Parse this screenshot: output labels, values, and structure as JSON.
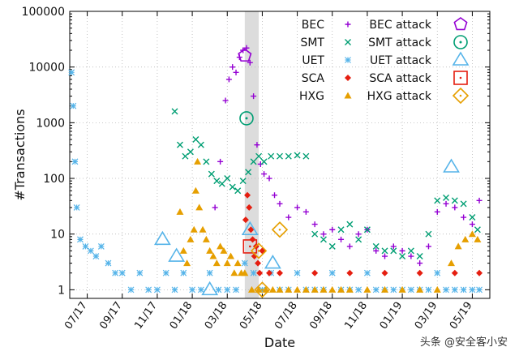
{
  "chart_data": {
    "type": "scatter",
    "title": "",
    "xlabel": "Date",
    "ylabel": "#Transactions",
    "yscale": "log",
    "ylim": [
      0.7,
      100000
    ],
    "y_ticks": [
      1,
      10,
      100,
      1000,
      10000,
      100000
    ],
    "y_tick_labels": [
      "1",
      "10",
      "100",
      "1000",
      "10000",
      "100000"
    ],
    "xlim": [
      0,
      24
    ],
    "x_ticks": [
      {
        "v": 1,
        "label": "07/17"
      },
      {
        "v": 3,
        "label": "09/17"
      },
      {
        "v": 5,
        "label": "11/17"
      },
      {
        "v": 7,
        "label": "01/18"
      },
      {
        "v": 9,
        "label": "03/18"
      },
      {
        "v": 11,
        "label": "05/18"
      },
      {
        "v": 13,
        "label": "07/18"
      },
      {
        "v": 15,
        "label": "09/18"
      },
      {
        "v": 17,
        "label": "11/18"
      },
      {
        "v": 19,
        "label": "01/19"
      },
      {
        "v": 21,
        "label": "03/19"
      },
      {
        "v": 23,
        "label": "05/19"
      }
    ],
    "attack_window": [
      10.0,
      10.8
    ],
    "colors": {
      "BEC": "#9400d3",
      "SMT": "#009e73",
      "UET": "#56b4e9",
      "SCA": "#e51e10",
      "HXG": "#e69f00"
    },
    "legend": {
      "placement": "top-right",
      "entries": [
        {
          "series": "BEC",
          "label": "BEC",
          "attack_label": "BEC attack"
        },
        {
          "series": "SMT",
          "label": "SMT",
          "attack_label": "SMT attack"
        },
        {
          "series": "UET",
          "label": "UET",
          "attack_label": "UET attack"
        },
        {
          "series": "SCA",
          "label": "SCA",
          "attack_label": "SCA attack"
        },
        {
          "series": "HXG",
          "label": "HXG",
          "attack_label": "HXG attack"
        }
      ]
    },
    "series": [
      {
        "name": "BEC",
        "marker": "plus",
        "points": [
          [
            8.3,
            30
          ],
          [
            8.6,
            200
          ],
          [
            8.9,
            2500
          ],
          [
            9.1,
            6000
          ],
          [
            9.3,
            10000
          ],
          [
            9.5,
            8000
          ],
          [
            9.7,
            15000
          ],
          [
            9.9,
            20000
          ],
          [
            10.1,
            22000
          ],
          [
            10.3,
            12000
          ],
          [
            10.5,
            3000
          ],
          [
            10.7,
            400
          ],
          [
            10.9,
            180
          ],
          [
            11.1,
            120
          ],
          [
            11.4,
            100
          ],
          [
            11.7,
            50
          ],
          [
            12.0,
            35
          ],
          [
            12.5,
            20
          ],
          [
            13.0,
            30
          ],
          [
            13.5,
            25
          ],
          [
            14.0,
            15
          ],
          [
            14.5,
            10
          ],
          [
            15.0,
            12
          ],
          [
            15.5,
            8
          ],
          [
            16.0,
            6
          ],
          [
            16.5,
            10
          ],
          [
            17.0,
            12
          ],
          [
            17.5,
            5
          ],
          [
            18.0,
            4
          ],
          [
            18.5,
            6
          ],
          [
            19.0,
            5
          ],
          [
            19.5,
            4
          ],
          [
            20.0,
            3
          ],
          [
            20.5,
            6
          ],
          [
            21.0,
            25
          ],
          [
            21.5,
            35
          ],
          [
            22.0,
            30
          ],
          [
            22.5,
            20
          ],
          [
            23.0,
            15
          ],
          [
            23.4,
            40
          ]
        ]
      },
      {
        "name": "SMT",
        "marker": "x",
        "points": [
          [
            6.0,
            1600
          ],
          [
            6.3,
            400
          ],
          [
            6.6,
            250
          ],
          [
            6.9,
            300
          ],
          [
            7.2,
            500
          ],
          [
            7.5,
            400
          ],
          [
            7.8,
            200
          ],
          [
            8.1,
            120
          ],
          [
            8.4,
            90
          ],
          [
            8.7,
            80
          ],
          [
            9.0,
            100
          ],
          [
            9.3,
            70
          ],
          [
            9.6,
            60
          ],
          [
            9.9,
            90
          ],
          [
            10.2,
            130
          ],
          [
            10.5,
            200
          ],
          [
            10.8,
            250
          ],
          [
            11.1,
            200
          ],
          [
            11.5,
            250
          ],
          [
            12.0,
            250
          ],
          [
            12.5,
            250
          ],
          [
            13.0,
            260
          ],
          [
            13.5,
            250
          ],
          [
            14.0,
            10
          ],
          [
            14.5,
            8
          ],
          [
            15.0,
            6
          ],
          [
            15.5,
            12
          ],
          [
            16.0,
            15
          ],
          [
            16.5,
            8
          ],
          [
            17.0,
            12
          ],
          [
            17.5,
            6
          ],
          [
            18.0,
            5
          ],
          [
            18.5,
            5
          ],
          [
            19.0,
            4
          ],
          [
            19.5,
            5
          ],
          [
            20.0,
            4
          ],
          [
            20.5,
            10
          ],
          [
            21.0,
            40
          ],
          [
            21.5,
            45
          ],
          [
            22.0,
            40
          ],
          [
            22.5,
            35
          ],
          [
            23.0,
            20
          ],
          [
            23.3,
            12
          ]
        ]
      },
      {
        "name": "UET",
        "marker": "star",
        "points": [
          [
            0.1,
            8000
          ],
          [
            0.2,
            2000
          ],
          [
            0.3,
            200
          ],
          [
            0.4,
            30
          ],
          [
            0.6,
            8
          ],
          [
            0.9,
            6
          ],
          [
            1.2,
            5
          ],
          [
            1.5,
            4
          ],
          [
            1.8,
            6
          ],
          [
            2.2,
            3
          ],
          [
            2.6,
            2
          ],
          [
            3.0,
            2
          ],
          [
            3.5,
            1
          ],
          [
            4.0,
            2
          ],
          [
            4.5,
            1
          ],
          [
            5.0,
            1
          ],
          [
            5.5,
            2
          ],
          [
            6.0,
            1
          ],
          [
            6.5,
            2
          ],
          [
            7.0,
            1
          ],
          [
            7.5,
            1
          ],
          [
            8.0,
            2
          ],
          [
            8.5,
            1
          ],
          [
            9.0,
            1
          ],
          [
            9.5,
            1
          ],
          [
            10.0,
            3
          ],
          [
            10.5,
            2
          ],
          [
            11.0,
            1
          ],
          [
            11.5,
            2
          ],
          [
            12.0,
            1
          ],
          [
            12.5,
            1
          ],
          [
            13.0,
            2
          ],
          [
            13.5,
            1
          ],
          [
            14.0,
            1
          ],
          [
            14.5,
            1
          ],
          [
            15.0,
            2
          ],
          [
            15.5,
            1
          ],
          [
            16.0,
            1
          ],
          [
            16.5,
            1
          ],
          [
            17.0,
            2
          ],
          [
            17.5,
            1
          ],
          [
            18.0,
            1
          ],
          [
            18.5,
            1
          ],
          [
            19.0,
            1
          ],
          [
            19.5,
            1
          ],
          [
            20.0,
            1
          ],
          [
            20.5,
            1
          ],
          [
            21.0,
            2
          ],
          [
            21.5,
            1
          ],
          [
            22.0,
            1
          ],
          [
            22.5,
            1
          ],
          [
            23.0,
            1
          ],
          [
            23.4,
            1
          ]
        ]
      },
      {
        "name": "SCA",
        "marker": "diamond",
        "points": [
          [
            10.05,
            18
          ],
          [
            10.15,
            50
          ],
          [
            10.25,
            30
          ],
          [
            10.35,
            12
          ],
          [
            10.45,
            8
          ],
          [
            10.55,
            4
          ],
          [
            10.65,
            6
          ],
          [
            10.75,
            3
          ],
          [
            10.85,
            2
          ],
          [
            11.0,
            5
          ],
          [
            11.4,
            2
          ],
          [
            12.0,
            2
          ],
          [
            14.0,
            2
          ],
          [
            16.0,
            2
          ],
          [
            18.0,
            2
          ],
          [
            20.0,
            2
          ],
          [
            22.0,
            2
          ],
          [
            23.4,
            2
          ]
        ]
      },
      {
        "name": "HXG",
        "marker": "triangle",
        "points": [
          [
            6.3,
            25
          ],
          [
            6.5,
            5
          ],
          [
            6.7,
            3
          ],
          [
            6.9,
            8
          ],
          [
            7.1,
            12
          ],
          [
            7.2,
            60
          ],
          [
            7.3,
            200
          ],
          [
            7.4,
            30
          ],
          [
            7.6,
            12
          ],
          [
            7.8,
            8
          ],
          [
            8.0,
            5
          ],
          [
            8.2,
            4
          ],
          [
            8.4,
            3
          ],
          [
            8.6,
            6
          ],
          [
            8.8,
            5
          ],
          [
            9.0,
            3
          ],
          [
            9.2,
            4
          ],
          [
            9.4,
            2
          ],
          [
            9.6,
            3
          ],
          [
            9.8,
            2
          ],
          [
            10.0,
            2
          ],
          [
            10.4,
            1
          ],
          [
            10.8,
            1
          ],
          [
            11.2,
            1
          ],
          [
            11.6,
            1
          ],
          [
            12.0,
            1
          ],
          [
            12.5,
            1
          ],
          [
            13.0,
            1
          ],
          [
            13.5,
            1
          ],
          [
            14.0,
            1
          ],
          [
            14.5,
            1
          ],
          [
            15.0,
            1
          ],
          [
            15.5,
            1
          ],
          [
            16.0,
            1
          ],
          [
            17.0,
            1
          ],
          [
            18.0,
            1
          ],
          [
            19.0,
            1
          ],
          [
            20.0,
            1
          ],
          [
            21.0,
            1
          ],
          [
            21.8,
            3
          ],
          [
            22.2,
            6
          ],
          [
            22.6,
            8
          ],
          [
            23.0,
            10
          ],
          [
            23.3,
            8
          ]
        ]
      }
    ],
    "attacks": [
      {
        "series": "BEC",
        "marker": "pentagon",
        "x": 10.0,
        "y": 16000
      },
      {
        "series": "SMT",
        "marker": "circle-dot",
        "x": 10.1,
        "y": 1200
      },
      {
        "series": "UET",
        "marker": "triangle-open",
        "x": 5.3,
        "y": 8
      },
      {
        "series": "UET",
        "marker": "triangle-open",
        "x": 6.1,
        "y": 4
      },
      {
        "series": "UET",
        "marker": "triangle-open",
        "x": 8.0,
        "y": 1
      },
      {
        "series": "UET",
        "marker": "triangle-open",
        "x": 10.3,
        "y": 12
      },
      {
        "series": "UET",
        "marker": "triangle-open",
        "x": 11.6,
        "y": 3
      },
      {
        "series": "UET",
        "marker": "triangle-open",
        "x": 21.8,
        "y": 160
      },
      {
        "series": "SCA",
        "marker": "square-open",
        "x": 10.3,
        "y": 6
      },
      {
        "series": "HXG",
        "marker": "diamond-open",
        "x": 10.8,
        "y": 5
      },
      {
        "series": "HXG",
        "marker": "diamond-open",
        "x": 11.0,
        "y": 1
      },
      {
        "series": "HXG",
        "marker": "diamond-open",
        "x": 12.0,
        "y": 12
      }
    ]
  },
  "watermark": "头条 @安全客小安"
}
